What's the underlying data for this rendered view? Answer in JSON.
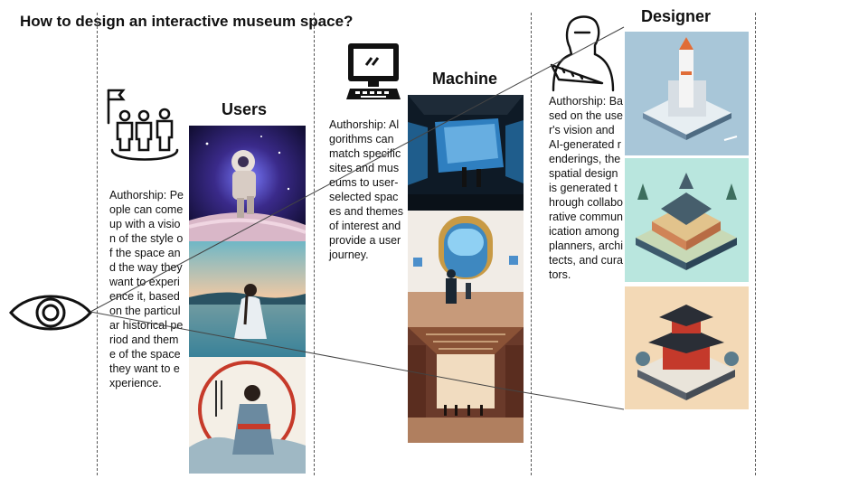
{
  "title": "How to design an interactive museum space?",
  "columns": {
    "users": {
      "heading": "Users",
      "authorship": "Authorship: People can come up with a vision of the style of the space and the way they want to experience it, based on the particular historical period and theme of the space they want to experience."
    },
    "machine": {
      "heading": "Machine",
      "authorship": "Authorship: Algorithms can match specific sites and museums to user-selected spaces and themes of interest and provide a user journey."
    },
    "designer": {
      "heading": "Designer",
      "authorship": "Authorship: Based on the user's vision and AI-generated renderings, the spatial design is generated through collaborative communication among planners, architects, and curators."
    }
  },
  "icons": {
    "eye": "eye-icon",
    "group": "people-group-icon",
    "computer": "computer-icon",
    "designer": "designer-with-ruler-icon"
  },
  "colors": {
    "divider": "#555555",
    "connector": "#444444"
  }
}
